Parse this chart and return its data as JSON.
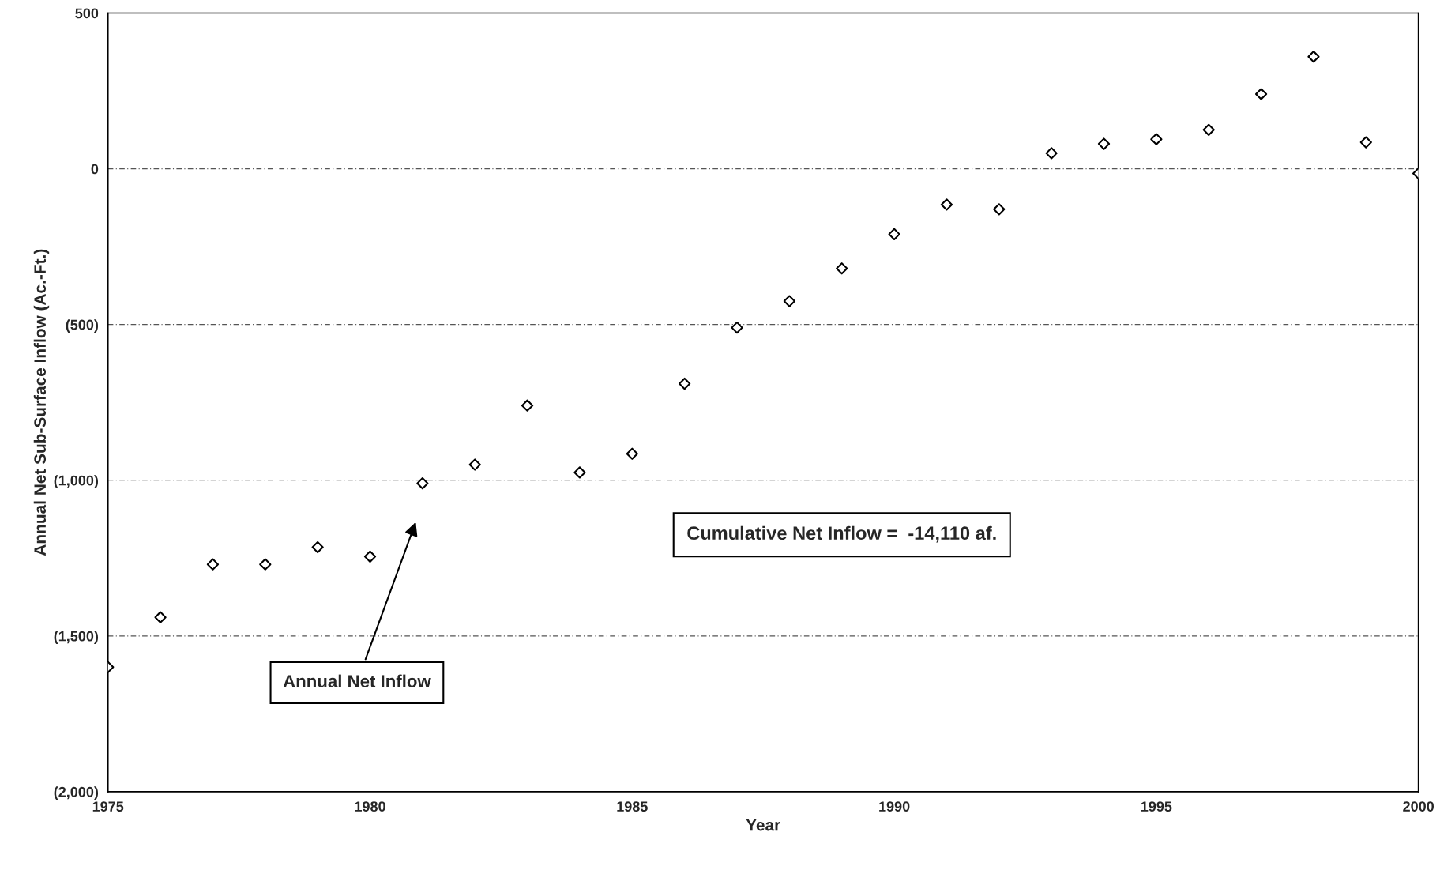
{
  "chart_data": {
    "type": "scatter",
    "xlabel": "Year",
    "ylabel": "Annual Net Sub-Surface Inflow (Ac.-Ft.)",
    "x": [
      1975,
      1976,
      1977,
      1978,
      1979,
      1980,
      1981,
      1982,
      1983,
      1984,
      1985,
      1986,
      1987,
      1988,
      1989,
      1990,
      1991,
      1992,
      1993,
      1994,
      1995,
      1996,
      1997,
      1998,
      1999,
      2000
    ],
    "series": [
      {
        "color": "#000000",
        "values": [
          -1600,
          -1440,
          -1270,
          -1270,
          -1215,
          -1245,
          -1010,
          -950,
          -760,
          -975,
          -915,
          -690,
          -510,
          -425,
          -320,
          -210,
          -115,
          -130,
          50,
          80,
          95,
          125,
          240,
          360,
          85,
          -15
        ]
      }
    ],
    "marker": "diamond",
    "grid": "y",
    "xlim": [
      1975,
      2000
    ],
    "xticks": [
      1975,
      1980,
      1985,
      1990,
      1995,
      2000
    ],
    "ylim": [
      -2000,
      500
    ],
    "yticks": [
      {
        "value": -2000,
        "label": "(2,000)"
      },
      {
        "value": -1500,
        "label": "(1,500)"
      },
      {
        "value": -1000,
        "label": "(1,000)"
      },
      {
        "value": -500,
        "label": "(500)"
      },
      0,
      500
    ],
    "annotations": [
      "Annual Net Inflow",
      "Cumulative Net Inflow =  -14,110 af."
    ]
  }
}
